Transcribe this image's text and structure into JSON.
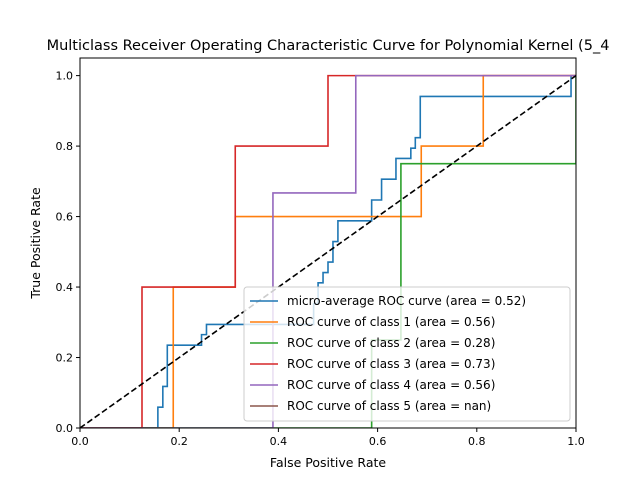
{
  "chart_data": {
    "type": "line",
    "title": "Multiclass Receiver Operating Characteristic Curve for Polynomial Kernel (5_4",
    "xlabel": "False Positive Rate",
    "ylabel": "True Positive Rate",
    "xlim": [
      0,
      1
    ],
    "ylim": [
      0,
      1.05
    ],
    "xticks": [
      "0.0",
      "0.2",
      "0.4",
      "0.6",
      "0.8",
      "1.0"
    ],
    "yticks": [
      "0.0",
      "0.2",
      "0.4",
      "0.6",
      "0.8",
      "1.0"
    ],
    "grid": false,
    "legend_position": "lower-right",
    "series": [
      {
        "name": "micro-average ROC curve (area = 0.52)",
        "color": "#1f77b4",
        "x": [
          0,
          0.157,
          0.157,
          0.167,
          0.167,
          0.176,
          0.176,
          0.245,
          0.245,
          0.255,
          0.255,
          0.471,
          0.471,
          0.48,
          0.48,
          0.49,
          0.49,
          0.5,
          0.5,
          0.51,
          0.51,
          0.52,
          0.52,
          0.588,
          0.588,
          0.608,
          0.608,
          0.637,
          0.637,
          0.667,
          0.667,
          0.676,
          0.676,
          0.686,
          0.686,
          0.99,
          0.99,
          1.0
        ],
        "y": [
          0,
          0,
          0.059,
          0.059,
          0.118,
          0.118,
          0.235,
          0.235,
          0.265,
          0.265,
          0.294,
          0.294,
          0.353,
          0.353,
          0.412,
          0.412,
          0.441,
          0.441,
          0.471,
          0.471,
          0.529,
          0.529,
          0.588,
          0.588,
          0.647,
          0.647,
          0.706,
          0.706,
          0.765,
          0.765,
          0.794,
          0.794,
          0.824,
          0.824,
          0.941,
          0.941,
          1.0,
          1.0
        ]
      },
      {
        "name": "ROC curve of class 1 (area = 0.56)",
        "color": "#ff7f0e",
        "x": [
          0,
          0.188,
          0.188,
          0.313,
          0.313,
          0.688,
          0.688,
          0.813,
          0.813,
          1.0
        ],
        "y": [
          0,
          0,
          0.4,
          0.4,
          0.6,
          0.6,
          0.8,
          0.8,
          1.0,
          1.0
        ]
      },
      {
        "name": "ROC curve of class 2 (area = 0.28)",
        "color": "#2ca02c",
        "x": [
          0,
          0.588,
          0.588,
          0.647,
          0.647,
          1.0,
          1.0
        ],
        "y": [
          0,
          0,
          0.25,
          0.25,
          0.75,
          0.75,
          1.0
        ]
      },
      {
        "name": "ROC curve of class 3 (area = 0.73)",
        "color": "#d62728",
        "x": [
          0,
          0.125,
          0.125,
          0.313,
          0.313,
          0.5,
          0.5,
          1.0
        ],
        "y": [
          0,
          0,
          0.4,
          0.4,
          0.8,
          0.8,
          1.0,
          1.0
        ]
      },
      {
        "name": "ROC curve of class 4 (area = 0.56)",
        "color": "#9467bd",
        "x": [
          0,
          0.389,
          0.389,
          0.556,
          0.556,
          1.0
        ],
        "y": [
          0,
          0,
          0.667,
          0.667,
          1.0,
          1.0
        ]
      },
      {
        "name": "ROC curve of class 5 (area = nan)",
        "color": "#8c564b",
        "x": [],
        "y": []
      }
    ],
    "reference_line": {
      "color": "#000000",
      "style": "dashed",
      "x": [
        0,
        1
      ],
      "y": [
        0,
        1
      ]
    }
  }
}
